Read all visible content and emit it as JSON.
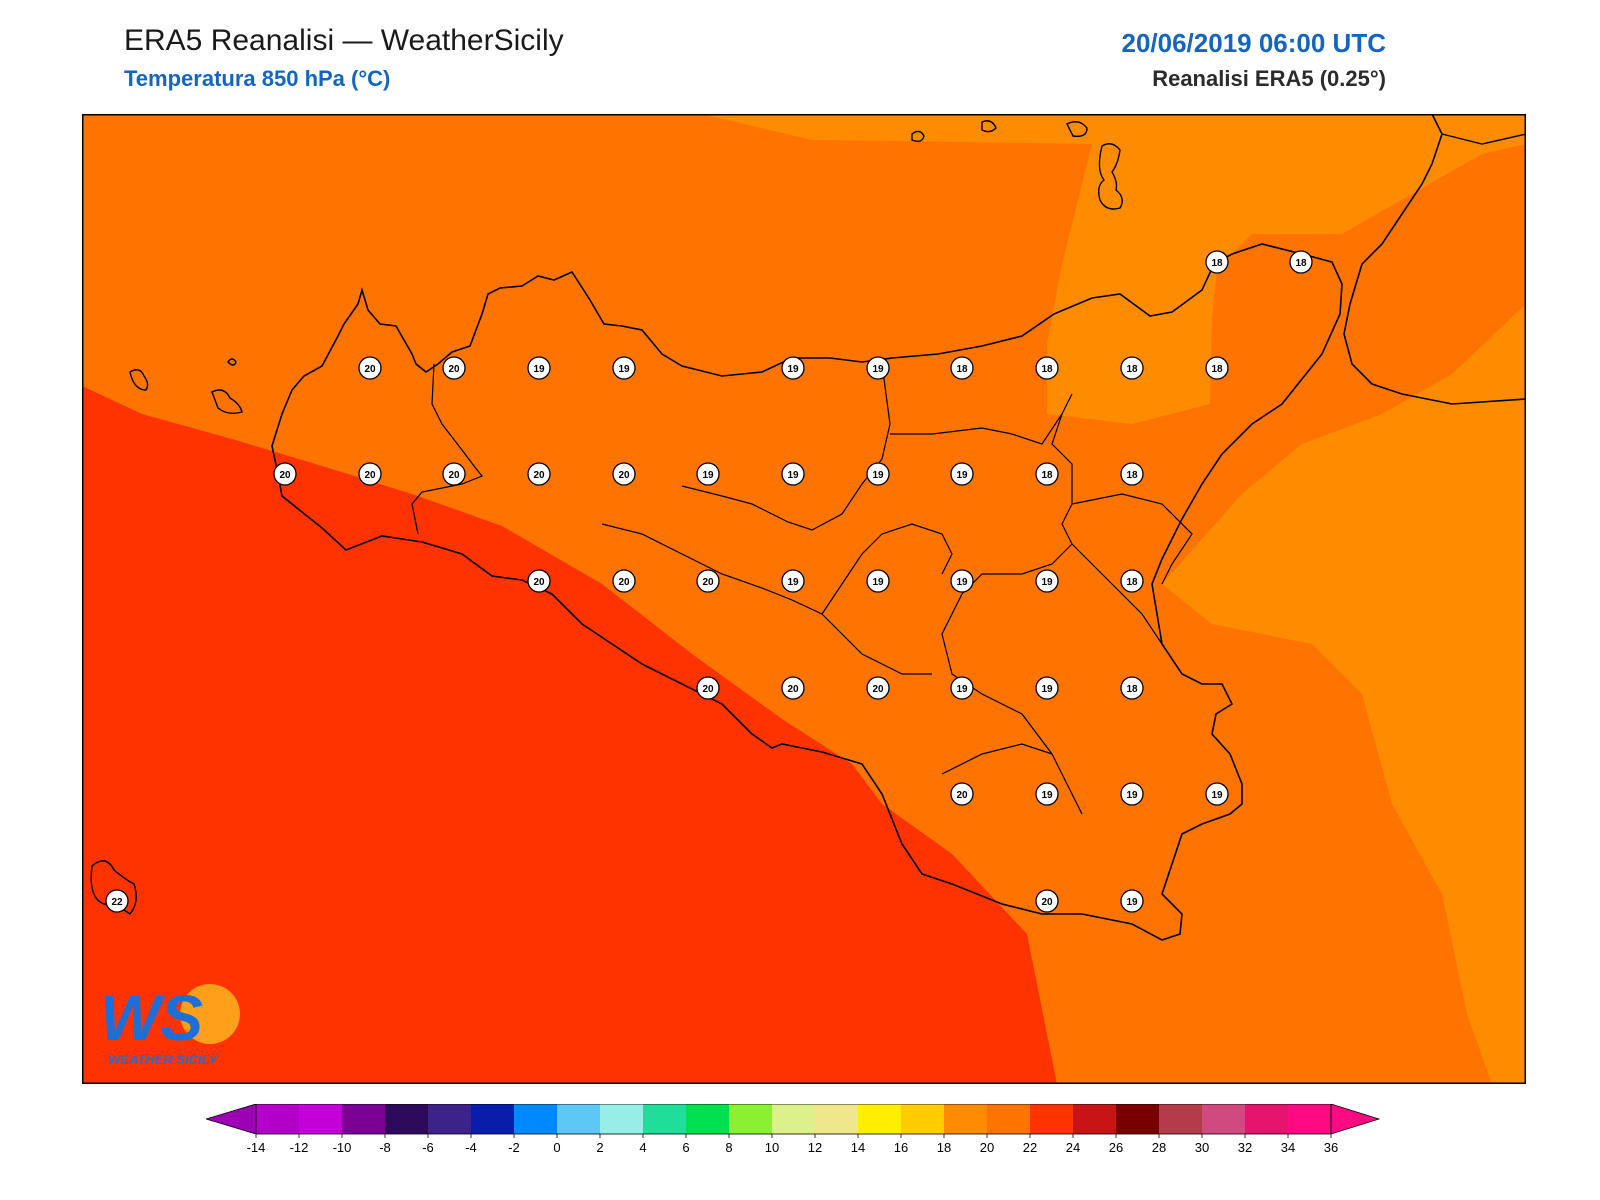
{
  "header": {
    "title": "ERA5 Reanalisi — WeatherSicily",
    "subtitle": "Temperatura 850 hPa (°C)",
    "datetime": "20/06/2019 06:00 UTC",
    "source": "Reanalisi ERA5 (0.25°)"
  },
  "logo": {
    "text": "WEATHER SICILY",
    "initials": "WS"
  },
  "colors": {
    "t16": "#ff8c00",
    "t18": "#ff7300",
    "t20": "#ff3300",
    "coast": "#000000"
  },
  "stations": [
    {
      "value": "20"
    },
    {
      "value": "20"
    },
    {
      "value": "19"
    },
    {
      "value": "19"
    },
    {
      "value": "19"
    },
    {
      "value": "19"
    },
    {
      "value": "18"
    },
    {
      "value": "18"
    },
    {
      "value": "18"
    },
    {
      "value": "18"
    },
    {
      "value": "20"
    },
    {
      "value": "20"
    },
    {
      "value": "20"
    },
    {
      "value": "20"
    },
    {
      "value": "20"
    },
    {
      "value": "19"
    },
    {
      "value": "19"
    },
    {
      "value": "19"
    },
    {
      "value": "19"
    },
    {
      "value": "18"
    },
    {
      "value": "18"
    },
    {
      "value": "20"
    },
    {
      "value": "20"
    },
    {
      "value": "20"
    },
    {
      "value": "19"
    },
    {
      "value": "19"
    },
    {
      "value": "19"
    },
    {
      "value": "19"
    },
    {
      "value": "18"
    },
    {
      "value": "20"
    },
    {
      "value": "20"
    },
    {
      "value": "20"
    },
    {
      "value": "19"
    },
    {
      "value": "19"
    },
    {
      "value": "18"
    },
    {
      "value": "20"
    },
    {
      "value": "19"
    },
    {
      "value": "19"
    },
    {
      "value": "19"
    },
    {
      "value": "20"
    },
    {
      "value": "19"
    },
    {
      "value": "18"
    },
    {
      "value": "18"
    },
    {
      "value": "22"
    }
  ],
  "colorbar": {
    "ticks": [
      "-14",
      "-12",
      "-10",
      "-8",
      "-6",
      "-4",
      "-2",
      "0",
      "2",
      "4",
      "6",
      "8",
      "10",
      "12",
      "14",
      "16",
      "18",
      "20",
      "22",
      "24",
      "26",
      "28",
      "30",
      "32",
      "34",
      "36"
    ],
    "colors": [
      "#b300c8",
      "#c400d8",
      "#7a0096",
      "#2e0a5a",
      "#3d2288",
      "#0a1caa",
      "#0088ff",
      "#5ec8f5",
      "#96eee6",
      "#1ede9a",
      "#00e050",
      "#8cf032",
      "#dcf08c",
      "#f0e68c",
      "#ffee00",
      "#ffcc00",
      "#ff8c00",
      "#ff7300",
      "#ff3300",
      "#c81414",
      "#780000",
      "#b43c4a",
      "#d04a80",
      "#e6146e",
      "#ff0a82"
    ],
    "under_color": "#9b00b4",
    "over_color": "#ff0a82"
  }
}
